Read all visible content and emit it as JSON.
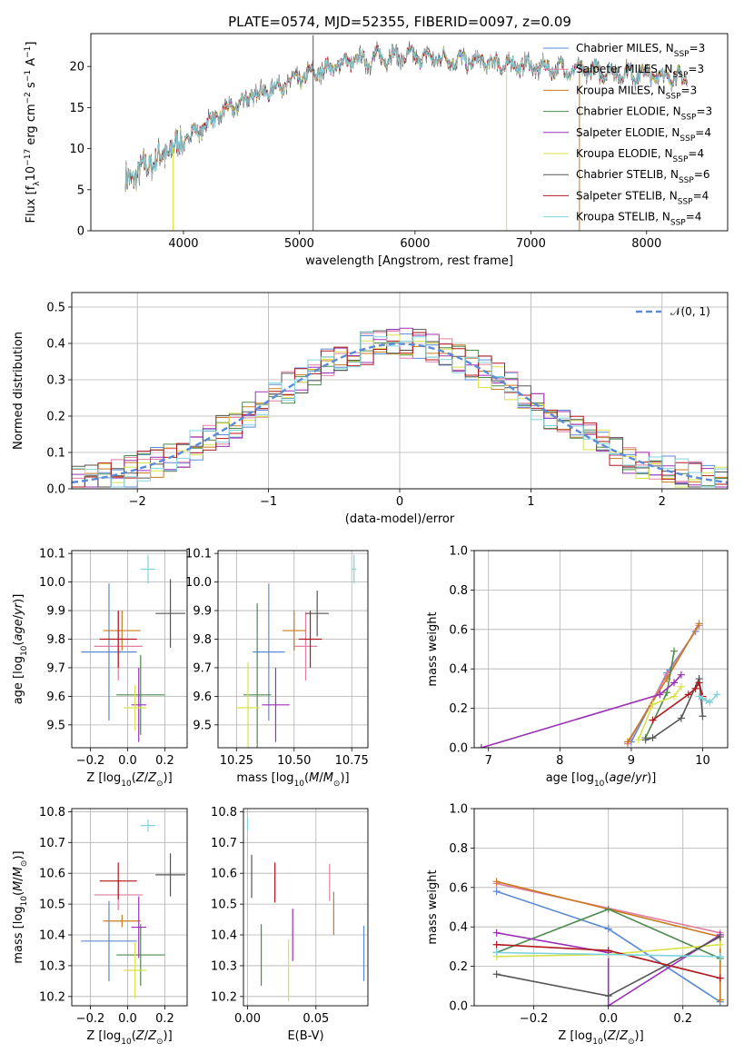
{
  "figure_title": "PLATE=0574, MJD=52355, FIBERID=0097, z=0.09",
  "series_styles": [
    {
      "name": "Chabrier MILES, N<sub>SSP</sub>=3",
      "color": "#5b8bd6"
    },
    {
      "name": "Salpeter MILES, N<sub>SSP</sub>=3",
      "color": "#e07ea0"
    },
    {
      "name": "Kroupa MILES, N<sub>SSP</sub>=3",
      "color": "#c87a1e"
    },
    {
      "name": "Chabrier ELODIE, N<sub>SSP</sub>=3",
      "color": "#4e8a4e"
    },
    {
      "name": "Salpeter ELODIE, N<sub>SSP</sub>=4",
      "color": "#9b30b8"
    },
    {
      "name": "Kroupa ELODIE, N<sub>SSP</sub>=4",
      "color": "#d8e24a"
    },
    {
      "name": "Chabrier STELIB, N<sub>SSP</sub>=6",
      "color": "#555555"
    },
    {
      "name": "Salpeter STELIB, N<sub>SSP</sub>=4",
      "color": "#b0181e"
    },
    {
      "name": "Kroupa STELIB, N<sub>SSP</sub>=4",
      "color": "#7fd3dc"
    }
  ],
  "chart_data": [
    {
      "id": "spectrum",
      "type": "line",
      "title": "PLATE=0574, MJD=52355, FIBERID=0097, z=0.09",
      "xlabel": "wavelength [Angstrom, rest frame]",
      "ylabel": "Flux [f<sub>λ</sub>10<sup>−17</sup> erg cm<sup>−2</sup> s<sup>−1</sup> A<sup>−1</sup>]",
      "xlim": [
        3200,
        8700
      ],
      "ylim": [
        0,
        24
      ],
      "xticks": [
        4000,
        5000,
        6000,
        7000,
        8000
      ],
      "yticks": [
        0,
        5,
        10,
        15,
        20
      ],
      "grid": false,
      "legend": "top-right",
      "continuum": [
        [
          3500,
          6
        ],
        [
          3700,
          8
        ],
        [
          4000,
          11
        ],
        [
          4300,
          14
        ],
        [
          4600,
          16.5
        ],
        [
          5000,
          18.5
        ],
        [
          5400,
          20.5
        ],
        [
          5800,
          21.3
        ],
        [
          6200,
          21
        ],
        [
          6600,
          20.5
        ],
        [
          7000,
          20
        ],
        [
          7400,
          19.5
        ],
        [
          7800,
          19.2
        ],
        [
          8200,
          18.8
        ],
        [
          8350,
          18.5
        ]
      ],
      "dropouts": [
        {
          "x": 3910,
          "series": 5
        },
        {
          "x": 6790,
          "series": 5
        },
        {
          "x": 7420,
          "series": 2
        },
        {
          "x": 5120,
          "series": 6
        }
      ]
    },
    {
      "id": "residuals",
      "type": "histogram",
      "xlabel": "(data-model)/error",
      "ylabel": "Normed distribution",
      "xlim": [
        -2.5,
        2.5
      ],
      "ylim": [
        0,
        0.54
      ],
      "xticks": [
        -2,
        -1,
        0,
        1,
        2
      ],
      "yticks": [
        0,
        0.1,
        0.2,
        0.3,
        0.4,
        0.5
      ],
      "grid": true,
      "legend": "top-right",
      "reference": {
        "name": "𝒩(0, 1)",
        "color": "#5b8bd6",
        "mu": 0,
        "sigma": 1
      },
      "bins": {
        "start": -2.5,
        "width": 0.1,
        "count": 50
      }
    },
    {
      "id": "age_vs_Z",
      "type": "scatter",
      "xlabel": "Z [log<sub>10</sub>(<i>Z</i>/<i>Z</i><sub>⊙</sub>)]",
      "ylabel": "age  [log<sub>10</sub>(<i>age</i>/<i>yr</i>)]",
      "xlim": [
        -0.3,
        0.32
      ],
      "ylim": [
        9.42,
        10.11
      ],
      "xticks": [
        -0.2,
        0,
        0.2
      ],
      "yticks": [
        9.5,
        9.6,
        9.7,
        9.8,
        9.9,
        10.0,
        10.1
      ],
      "points": [
        {
          "series": 0,
          "x": -0.1,
          "xerr": 0.15,
          "y": 9.755,
          "yerr": 0.24
        },
        {
          "series": 1,
          "x": -0.05,
          "xerr": 0.13,
          "y": 9.775,
          "yerr": 0.12
        },
        {
          "series": 2,
          "x": -0.03,
          "xerr": 0.1,
          "y": 9.83,
          "yerr": 0.07
        },
        {
          "series": 3,
          "x": 0.07,
          "xerr": 0.13,
          "y": 9.605,
          "yerr": 0.14
        },
        {
          "series": 4,
          "x": 0.06,
          "xerr": 0.04,
          "y": 9.57,
          "yerr": 0.13
        },
        {
          "series": 5,
          "x": 0.04,
          "xerr": 0.06,
          "y": 9.56,
          "yerr": 0.08
        },
        {
          "series": 6,
          "x": 0.23,
          "xerr": 0.08,
          "y": 9.89,
          "yerr": 0.12
        },
        {
          "series": 7,
          "x": -0.05,
          "xerr": 0.1,
          "y": 9.8,
          "yerr": 0.1
        },
        {
          "series": 8,
          "x": 0.11,
          "xerr": 0.04,
          "y": 10.045,
          "yerr": 0.05
        }
      ]
    },
    {
      "id": "age_vs_mass",
      "type": "scatter",
      "xlabel": "mass [log<sub>10</sub>(<i>M</i>/<i>M</i><sub>⊙</sub>)]",
      "ylabel": "",
      "xlim": [
        10.17,
        10.82
      ],
      "ylim": [
        9.42,
        10.11
      ],
      "xticks": [
        10.25,
        10.5,
        10.75
      ],
      "yticks": [
        9.5,
        9.6,
        9.7,
        9.8,
        9.9,
        10.0,
        10.1
      ],
      "points": [
        {
          "series": 0,
          "x": 10.39,
          "xerr": 0.07,
          "y": 9.755,
          "yerr": 0.24
        },
        {
          "series": 1,
          "x": 10.55,
          "xerr": 0.05,
          "y": 9.775,
          "yerr": 0.12
        },
        {
          "series": 2,
          "x": 10.5,
          "xerr": 0.05,
          "y": 9.83,
          "yerr": 0.07
        },
        {
          "series": 3,
          "x": 10.34,
          "xerr": 0.06,
          "y": 9.605,
          "yerr": 0.32
        },
        {
          "series": 4,
          "x": 10.42,
          "xerr": 0.06,
          "y": 9.57,
          "yerr": 0.13
        },
        {
          "series": 5,
          "x": 10.3,
          "xerr": 0.05,
          "y": 9.56,
          "yerr": 0.16
        },
        {
          "series": 6,
          "x": 10.6,
          "xerr": 0.05,
          "y": 9.89,
          "yerr": 0.08
        },
        {
          "series": 7,
          "x": 10.57,
          "xerr": 0.05,
          "y": 9.8,
          "yerr": 0.1
        },
        {
          "series": 8,
          "x": 10.76,
          "xerr": 0.01,
          "y": 10.045,
          "yerr": 0.05
        }
      ]
    },
    {
      "id": "weight_vs_age",
      "type": "line",
      "xlabel": "age  [log<sub>10</sub>(<i>age</i>/<i>yr</i>)]",
      "ylabel": "mass weight",
      "xlim": [
        6.8,
        10.35
      ],
      "ylim": [
        0,
        1
      ],
      "xticks": [
        7,
        8,
        9,
        10
      ],
      "yticks": [
        0,
        0.2,
        0.4,
        0.6,
        0.8,
        1.0
      ],
      "grid": true,
      "series": [
        {
          "series": 0,
          "x": [
            9.0,
            9.5,
            9.9
          ],
          "y": [
            0.03,
            0.38,
            0.59
          ]
        },
        {
          "series": 1,
          "x": [
            8.95,
            9.5,
            9.95
          ],
          "y": [
            0.02,
            0.37,
            0.62
          ]
        },
        {
          "series": 2,
          "x": [
            8.95,
            9.5,
            9.95
          ],
          "y": [
            0.03,
            0.35,
            0.63
          ]
        },
        {
          "series": 3,
          "x": [
            9.2,
            9.5,
            9.6
          ],
          "y": [
            0.05,
            0.28,
            0.49
          ]
        },
        {
          "series": 4,
          "x": [
            6.9,
            9.4,
            9.6,
            9.7
          ],
          "y": [
            0.0,
            0.27,
            0.33,
            0.37
          ]
        },
        {
          "series": 5,
          "x": [
            9.1,
            9.3,
            9.6,
            9.7
          ],
          "y": [
            0.04,
            0.22,
            0.26,
            0.31
          ]
        },
        {
          "series": 6,
          "x": [
            9.2,
            9.3,
            9.7,
            9.95,
            10.0
          ],
          "y": [
            0.04,
            0.05,
            0.15,
            0.35,
            0.16
          ]
        },
        {
          "series": 7,
          "x": [
            9.3,
            9.8,
            9.9,
            9.95,
            10.0
          ],
          "y": [
            0.14,
            0.27,
            0.3,
            0.33,
            0.26
          ]
        },
        {
          "series": 8,
          "x": [
            9.95,
            10.0,
            10.05,
            10.1,
            10.2
          ],
          "y": [
            0.26,
            0.25,
            0.24,
            0.23,
            0.27
          ]
        }
      ]
    },
    {
      "id": "mass_vs_Z",
      "type": "scatter",
      "xlabel": "Z [log<sub>10</sub>(<i>Z</i>/<i>Z</i><sub>⊙</sub>)]",
      "ylabel": "mass [log<sub>10</sub>(<i>M</i>/<i>M</i><sub>⊙</sub>)]",
      "xlim": [
        -0.3,
        0.32
      ],
      "ylim": [
        10.17,
        10.81
      ],
      "xticks": [
        -0.2,
        0,
        0.2
      ],
      "yticks": [
        10.2,
        10.3,
        10.4,
        10.5,
        10.6,
        10.7,
        10.8
      ],
      "points": [
        {
          "series": 0,
          "x": -0.1,
          "xerr": 0.15,
          "y": 10.38,
          "yerr": 0.13
        },
        {
          "series": 1,
          "x": -0.05,
          "xerr": 0.13,
          "y": 10.53,
          "yerr": 0.05
        },
        {
          "series": 2,
          "x": -0.03,
          "xerr": 0.1,
          "y": 10.445,
          "yerr": 0.02
        },
        {
          "series": 3,
          "x": 0.07,
          "xerr": 0.13,
          "y": 10.335,
          "yerr": 0.1
        },
        {
          "series": 4,
          "x": 0.06,
          "xerr": 0.04,
          "y": 10.425,
          "yerr": 0.1
        },
        {
          "series": 5,
          "x": 0.04,
          "xerr": 0.06,
          "y": 10.285,
          "yerr": 0.09
        },
        {
          "series": 6,
          "x": 0.23,
          "xerr": 0.08,
          "y": 10.595,
          "yerr": 0.07
        },
        {
          "series": 7,
          "x": -0.05,
          "xerr": 0.1,
          "y": 10.575,
          "yerr": 0.06
        },
        {
          "series": 8,
          "x": 0.11,
          "xerr": 0.04,
          "y": 10.755,
          "yerr": 0.02
        }
      ]
    },
    {
      "id": "mass_vs_ebv",
      "type": "scatter",
      "xlabel": "E(B-V)",
      "ylabel": "",
      "xlim": [
        -0.003,
        0.088
      ],
      "ylim": [
        10.17,
        10.81
      ],
      "xticks": [
        0.0,
        0.05
      ],
      "xticklabels": [
        "0.00",
        "0.05"
      ],
      "yticks": [
        10.2,
        10.3,
        10.4,
        10.5,
        10.6,
        10.7,
        10.8
      ],
      "points": [
        {
          "series": 0,
          "x": 0.085,
          "xerr": 0,
          "y": 10.34,
          "yerr": 0.09
        },
        {
          "series": 1,
          "x": 0.06,
          "xerr": 0,
          "y": 10.57,
          "yerr": 0.06
        },
        {
          "series": 2,
          "x": 0.063,
          "xerr": 0,
          "y": 10.47,
          "yerr": 0.07
        },
        {
          "series": 3,
          "x": 0.01,
          "xerr": 0,
          "y": 10.335,
          "yerr": 0.1
        },
        {
          "series": 4,
          "x": 0.033,
          "xerr": 0,
          "y": 10.4,
          "yerr": 0.085
        },
        {
          "series": 5,
          "x": 0.03,
          "xerr": 0,
          "y": 10.285,
          "yerr": 0.1
        },
        {
          "series": 6,
          "x": 0.003,
          "xerr": 0,
          "y": 10.59,
          "yerr": 0.07
        },
        {
          "series": 7,
          "x": 0.02,
          "xerr": 0,
          "y": 10.57,
          "yerr": 0.065
        },
        {
          "series": 8,
          "x": 0.0,
          "xerr": 0,
          "y": 10.76,
          "yerr": 0.02
        }
      ]
    },
    {
      "id": "weight_vs_Z",
      "type": "line",
      "xlabel": "Z [log<sub>10</sub>(<i>Z</i>/<i>Z</i><sub>⊙</sub>)]",
      "ylabel": "mass weight",
      "xlim": [
        -0.36,
        0.32
      ],
      "ylim": [
        0,
        1
      ],
      "xticks": [
        -0.2,
        0,
        0.2
      ],
      "yticks": [
        0,
        0.2,
        0.4,
        0.6,
        0.8,
        1.0
      ],
      "grid": true,
      "series": [
        {
          "series": 0,
          "x": [
            -0.3,
            0.0,
            0.3
          ],
          "y": [
            0.58,
            0.39,
            0.02
          ]
        },
        {
          "series": 1,
          "x": [
            -0.3,
            0.3
          ],
          "y": [
            0.62,
            0.37
          ]
        },
        {
          "series": 2,
          "x": [
            -0.3,
            0.3,
            0.3
          ],
          "y": [
            0.63,
            0.35,
            0.03
          ]
        },
        {
          "series": 3,
          "x": [
            -0.3,
            0.0,
            0.3
          ],
          "y": [
            0.27,
            0.49,
            0.24
          ]
        },
        {
          "series": 4,
          "x": [
            -0.3,
            0.0,
            0.0,
            0.3
          ],
          "y": [
            0.37,
            0.27,
            0.0,
            0.36
          ]
        },
        {
          "series": 5,
          "x": [
            -0.3,
            0.0,
            0.3
          ],
          "y": [
            0.25,
            0.26,
            0.31
          ]
        },
        {
          "series": 6,
          "x": [
            -0.3,
            0.0,
            0.3
          ],
          "y": [
            0.16,
            0.05,
            0.35
          ]
        },
        {
          "series": 7,
          "x": [
            -0.3,
            0.0,
            0.3
          ],
          "y": [
            0.31,
            0.28,
            0.14
          ]
        },
        {
          "series": 8,
          "x": [
            -0.3,
            0.3
          ],
          "y": [
            0.27,
            0.25
          ]
        }
      ]
    }
  ]
}
